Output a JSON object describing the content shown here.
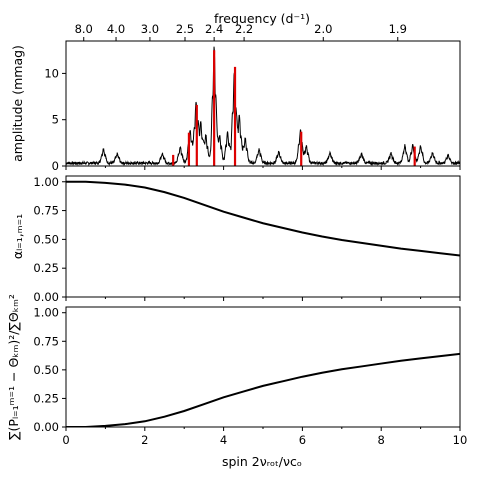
{
  "figure": {
    "top_axis_label": "frequency (d⁻¹)",
    "x_axis_label": "spin 2νᵣₒₜ/νᴄₒ",
    "panel1_ylabel": "amplitude (mmag)",
    "panel2_ylabel": "αₗ₌₁,ₘ₌₁",
    "panel3_ylabel": "∑(Pₗ₌₁ᵐ⁼¹ − Θₖₘ)²/∑Θₖₘ²"
  },
  "colors": {
    "line": "#000000",
    "highlight": "#dd0000",
    "background": "#ffffff"
  },
  "chart_data": [
    {
      "type": "line",
      "title": "",
      "xlabel": "",
      "ylabel": "amplitude (mmag)",
      "xlim": [
        0,
        10
      ],
      "ylim": [
        0,
        13.5
      ],
      "x_ticks": [
        0,
        2,
        4,
        6,
        8,
        10
      ],
      "y_ticks": [
        0,
        5,
        10
      ],
      "y_tick_labels": [
        "0",
        "5",
        "10"
      ],
      "top_axis": {
        "label": "frequency (d⁻¹)",
        "ticks": [
          {
            "x": 0.45,
            "label": "8.0"
          },
          {
            "x": 1.27,
            "label": "4.0"
          },
          {
            "x": 2.13,
            "label": "3.0"
          },
          {
            "x": 3.02,
            "label": "2.5"
          },
          {
            "x": 3.76,
            "label": "2.4"
          },
          {
            "x": 4.52,
            "label": "2.2"
          },
          {
            "x": 6.53,
            "label": "2.0"
          },
          {
            "x": 8.42,
            "label": "1.9"
          }
        ]
      },
      "series": [
        {
          "kind": "periodogram",
          "color": "#000000",
          "base_noise": 0.35,
          "peaks": [
            {
              "x": 0.95,
              "amp": 1.6
            },
            {
              "x": 1.3,
              "amp": 1.0
            },
            {
              "x": 2.45,
              "amp": 1.0
            },
            {
              "x": 2.9,
              "amp": 1.8
            },
            {
              "x": 3.15,
              "amp": 3.6
            },
            {
              "x": 3.3,
              "amp": 6.6
            },
            {
              "x": 3.42,
              "amp": 4.2
            },
            {
              "x": 3.55,
              "amp": 3.0
            },
            {
              "x": 3.76,
              "amp": 12.5
            },
            {
              "x": 3.9,
              "amp": 3.0
            },
            {
              "x": 4.1,
              "amp": 3.3
            },
            {
              "x": 4.27,
              "amp": 9.6
            },
            {
              "x": 4.4,
              "amp": 5.0
            },
            {
              "x": 4.55,
              "amp": 2.7
            },
            {
              "x": 4.9,
              "amp": 1.5
            },
            {
              "x": 5.4,
              "amp": 1.2
            },
            {
              "x": 5.95,
              "amp": 3.6
            },
            {
              "x": 6.1,
              "amp": 1.8
            },
            {
              "x": 6.7,
              "amp": 1.1
            },
            {
              "x": 7.5,
              "amp": 1.0
            },
            {
              "x": 8.25,
              "amp": 1.1
            },
            {
              "x": 8.6,
              "amp": 1.9
            },
            {
              "x": 8.8,
              "amp": 2.0
            },
            {
              "x": 9.0,
              "amp": 1.9
            },
            {
              "x": 9.3,
              "amp": 1.1
            },
            {
              "x": 9.7,
              "amp": 0.9
            }
          ]
        },
        {
          "kind": "identified-modes",
          "color": "#dd0000",
          "values": [
            {
              "x": 2.72,
              "y": 1.2
            },
            {
              "x": 3.12,
              "y": 3.6
            },
            {
              "x": 3.32,
              "y": 6.6
            },
            {
              "x": 3.76,
              "y": 12.5
            },
            {
              "x": 4.29,
              "y": 10.7
            },
            {
              "x": 5.97,
              "y": 3.7
            },
            {
              "x": 8.85,
              "y": 2.1
            }
          ]
        }
      ]
    },
    {
      "type": "line",
      "title": "",
      "xlabel": "",
      "ylabel": "αₗ₌₁,ₘ₌₁",
      "xlim": [
        0,
        10
      ],
      "ylim": [
        0,
        1.05
      ],
      "x_ticks": [
        0,
        2,
        4,
        6,
        8,
        10
      ],
      "y_ticks": [
        0,
        0.25,
        0.5,
        0.75,
        1.0
      ],
      "y_tick_labels": [
        "0.00",
        "0.25",
        "0.50",
        "0.75",
        "1.00"
      ],
      "series": [
        {
          "color": "#000000",
          "x": [
            0,
            0.5,
            1,
            1.5,
            2,
            2.5,
            3,
            3.5,
            4,
            4.5,
            5,
            5.5,
            6,
            6.5,
            7,
            7.5,
            8,
            8.5,
            9,
            9.5,
            10
          ],
          "values": [
            1.0,
            1.0,
            0.99,
            0.975,
            0.95,
            0.91,
            0.86,
            0.8,
            0.74,
            0.69,
            0.64,
            0.6,
            0.56,
            0.525,
            0.495,
            0.47,
            0.445,
            0.42,
            0.4,
            0.38,
            0.36
          ]
        }
      ]
    },
    {
      "type": "line",
      "title": "",
      "xlabel": "spin 2νᵣₒₜ/νᴄₒ",
      "ylabel": "∑(Pₗ₌₁ᵐ⁼¹ − Θₖₘ)²/∑Θₖₘ²",
      "xlim": [
        0,
        10
      ],
      "ylim": [
        0,
        1.05
      ],
      "x_ticks": [
        0,
        2,
        4,
        6,
        8,
        10
      ],
      "x_tick_labels": [
        "0",
        "2",
        "4",
        "6",
        "8",
        "10"
      ],
      "y_ticks": [
        0,
        0.25,
        0.5,
        0.75,
        1.0
      ],
      "y_tick_labels": [
        "0.00",
        "0.25",
        "0.50",
        "0.75",
        "1.00"
      ],
      "series": [
        {
          "color": "#000000",
          "x": [
            0,
            0.5,
            1,
            1.5,
            2,
            2.5,
            3,
            3.5,
            4,
            4.5,
            5,
            5.5,
            6,
            6.5,
            7,
            7.5,
            8,
            8.5,
            9,
            9.5,
            10
          ],
          "values": [
            0.0,
            0.0,
            0.01,
            0.025,
            0.05,
            0.09,
            0.14,
            0.2,
            0.26,
            0.31,
            0.36,
            0.4,
            0.44,
            0.475,
            0.505,
            0.53,
            0.555,
            0.58,
            0.6,
            0.62,
            0.64
          ]
        }
      ]
    }
  ]
}
